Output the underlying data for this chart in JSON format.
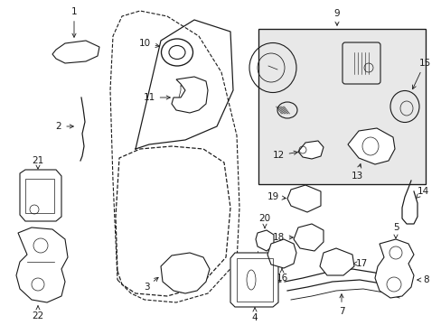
{
  "bg_color": "#ffffff",
  "line_color": "#1a1a1a",
  "box_bg": "#e8e8e8",
  "figw": 4.89,
  "figh": 3.6,
  "dpi": 100
}
